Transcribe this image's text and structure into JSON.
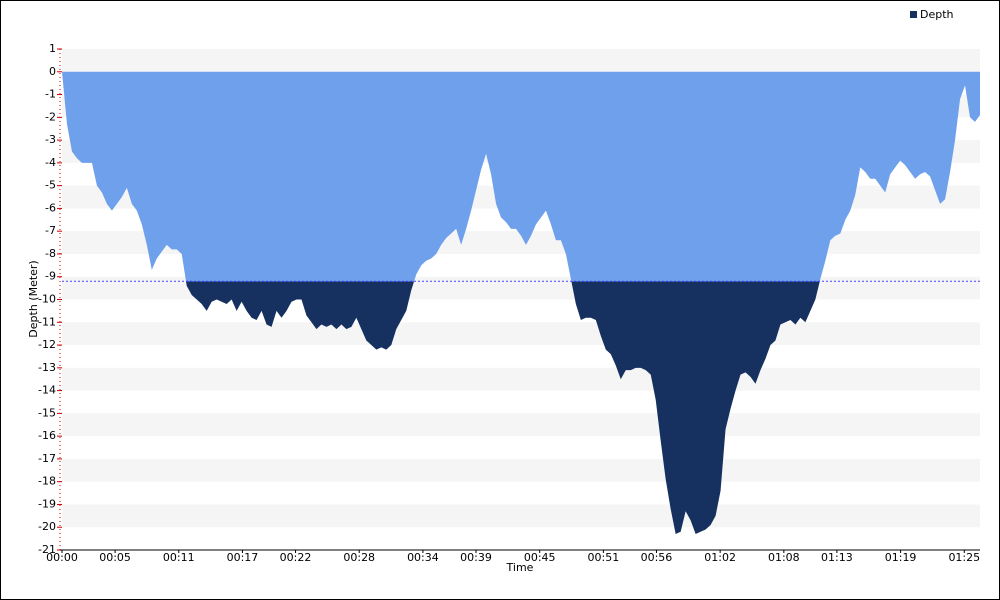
{
  "chart_data": {
    "type": "area",
    "x_label": "Time",
    "y_label": "Depth (Meter)",
    "xlim": [
      0,
      86.48
    ],
    "xticks": [
      {
        "value": 0,
        "label": "00:00"
      },
      {
        "value": 5,
        "label": "00:05"
      },
      {
        "value": 11,
        "label": "00:11"
      },
      {
        "value": 17,
        "label": "00:17"
      },
      {
        "value": 22,
        "label": "00:22"
      },
      {
        "value": 28,
        "label": "00:28"
      },
      {
        "value": 34,
        "label": "00:34"
      },
      {
        "value": 39,
        "label": "00:39"
      },
      {
        "value": 45,
        "label": "00:45"
      },
      {
        "value": 51,
        "label": "00:51"
      },
      {
        "value": 56,
        "label": "00:56"
      },
      {
        "value": 62,
        "label": "01:02"
      },
      {
        "value": 68,
        "label": "01:08"
      },
      {
        "value": 73,
        "label": "01:13"
      },
      {
        "value": 79,
        "label": "01:19"
      },
      {
        "value": 85,
        "label": "01:25"
      }
    ],
    "ylim": [
      -21,
      1
    ],
    "yticks": [
      1,
      0,
      -1,
      -2,
      -3,
      -4,
      -5,
      -6,
      -7,
      -8,
      -9,
      -10,
      -11,
      -12,
      -13,
      -14,
      -15,
      -16,
      -17,
      -18,
      -19,
      -20,
      -21
    ],
    "grid": "bands",
    "legend": "top-right",
    "threshold": -9.2,
    "x": [
      0,
      0.47,
      0.94,
      1.41,
      1.88,
      2.35,
      2.82,
      3.29,
      3.76,
      4.23,
      4.7,
      5.17,
      5.64,
      6.11,
      6.58,
      7.05,
      7.52,
      7.99,
      8.46,
      8.93,
      9.4,
      9.87,
      10.34,
      10.81,
      11.28,
      11.75,
      12.22,
      12.69,
      13.16,
      13.63,
      14.1,
      14.57,
      15.04,
      15.51,
      15.98,
      16.45,
      16.92,
      17.39,
      17.86,
      18.33,
      18.8,
      19.27,
      19.74,
      20.21,
      20.68,
      21.15,
      21.62,
      22.09,
      22.56,
      23.03,
      23.5,
      23.97,
      24.44,
      24.91,
      25.38,
      25.85,
      26.32,
      26.79,
      27.26,
      27.73,
      28.2,
      28.67,
      29.14,
      29.61,
      30.08,
      30.55,
      31.02,
      31.49,
      31.96,
      32.43,
      32.9,
      33.37,
      33.84,
      34.31,
      34.78,
      35.25,
      35.72,
      36.19,
      36.66,
      37.13,
      37.6,
      38.07,
      38.54,
      39.01,
      39.48,
      39.95,
      40.42,
      40.89,
      41.36,
      41.83,
      42.3,
      42.77,
      43.24,
      43.71,
      44.18,
      44.65,
      45.12,
      45.59,
      46.06,
      46.53,
      47,
      47.47,
      47.94,
      48.41,
      48.88,
      49.35,
      49.82,
      50.29,
      50.76,
      51.23,
      51.7,
      52.17,
      52.64,
      53.11,
      53.58,
      54.05,
      54.52,
      54.99,
      55.46,
      55.93,
      56.4,
      56.87,
      57.34,
      57.81,
      58.28,
      58.75,
      59.22,
      59.69,
      60.16,
      60.63,
      61.1,
      61.57,
      62.04,
      62.51,
      62.98,
      63.45,
      63.92,
      64.39,
      64.86,
      65.33,
      65.8,
      66.27,
      66.74,
      67.21,
      67.68,
      68.15,
      68.62,
      69.09,
      69.56,
      70.03,
      70.5,
      70.97,
      71.44,
      71.91,
      72.38,
      72.85,
      73.32,
      73.79,
      74.26,
      74.73,
      75.2,
      75.67,
      76.14,
      76.61,
      77.08,
      77.55,
      78.02,
      78.49,
      78.96,
      79.43,
      79.9,
      80.37,
      80.84,
      81.31,
      81.78,
      82.25,
      82.72,
      83.19,
      83.66,
      84.13,
      84.6,
      85.07,
      85.54,
      86.01,
      86.48
    ],
    "series": [
      {
        "name": "Depth",
        "color": "#6fa0ec",
        "below_color": "#16315f",
        "values": [
          0,
          -2.3,
          -3.5,
          -3.8,
          -4.0,
          -4.0,
          -4.0,
          -5.0,
          -5.3,
          -5.8,
          -6.1,
          -5.8,
          -5.5,
          -5.1,
          -5.8,
          -6.1,
          -6.7,
          -7.6,
          -8.7,
          -8.2,
          -7.9,
          -7.6,
          -7.8,
          -7.8,
          -8.0,
          -9.4,
          -9.8,
          -10.0,
          -10.2,
          -10.5,
          -10.1,
          -10.0,
          -10.1,
          -10.2,
          -10.0,
          -10.5,
          -10.1,
          -10.5,
          -10.8,
          -10.9,
          -10.5,
          -11.1,
          -11.2,
          -10.5,
          -10.8,
          -10.5,
          -10.1,
          -10.0,
          -10.0,
          -10.7,
          -11.0,
          -11.3,
          -11.1,
          -11.2,
          -11.1,
          -11.3,
          -11.1,
          -11.3,
          -11.2,
          -10.8,
          -11.3,
          -11.8,
          -12.0,
          -12.2,
          -12.1,
          -12.2,
          -12.0,
          -11.3,
          -10.9,
          -10.5,
          -9.6,
          -8.9,
          -8.5,
          -8.3,
          -8.2,
          -8.0,
          -7.6,
          -7.3,
          -7.1,
          -6.9,
          -7.6,
          -6.9,
          -6.1,
          -5.2,
          -4.3,
          -3.6,
          -4.5,
          -5.8,
          -6.4,
          -6.6,
          -6.9,
          -6.9,
          -7.2,
          -7.6,
          -7.2,
          -6.7,
          -6.4,
          -6.1,
          -6.7,
          -7.4,
          -7.4,
          -8.0,
          -9.1,
          -10.2,
          -10.9,
          -10.8,
          -10.8,
          -10.9,
          -11.6,
          -12.2,
          -12.4,
          -12.9,
          -13.5,
          -13.1,
          -13.1,
          -13.0,
          -13.0,
          -13.1,
          -13.3,
          -14.4,
          -16.2,
          -17.9,
          -19.2,
          -20.3,
          -20.2,
          -19.3,
          -19.7,
          -20.3,
          -20.2,
          -20.1,
          -19.9,
          -19.5,
          -18.4,
          -15.7,
          -14.8,
          -14.0,
          -13.3,
          -13.2,
          -13.4,
          -13.7,
          -13.1,
          -12.6,
          -12.0,
          -11.8,
          -11.1,
          -11.0,
          -10.9,
          -11.1,
          -10.8,
          -11.0,
          -10.5,
          -10.0,
          -9.1,
          -8.3,
          -7.4,
          -7.2,
          -7.1,
          -6.5,
          -6.1,
          -5.4,
          -4.2,
          -4.4,
          -4.7,
          -4.7,
          -5.0,
          -5.3,
          -4.5,
          -4.2,
          -3.9,
          -4.1,
          -4.4,
          -4.7,
          -4.5,
          -4.4,
          -4.6,
          -5.2,
          -5.8,
          -5.6,
          -4.4,
          -3.0,
          -1.2,
          -0.6,
          -2.0,
          -2.2,
          -1.9
        ]
      }
    ]
  }
}
